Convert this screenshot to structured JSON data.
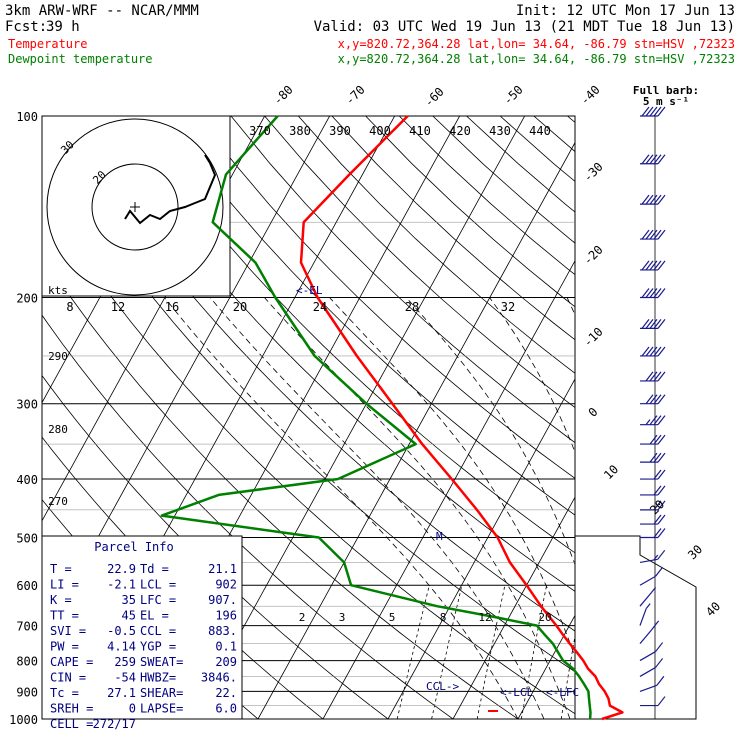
{
  "header": {
    "model": "3km ARW-WRF -- NCAR/MMM",
    "init": "Init: 12 UTC Mon 17 Jun 13",
    "fcst_label": "Fcst:",
    "fcst_value": "39 h",
    "valid": "Valid: 03 UTC Wed 19 Jun 13 (21 MDT Tue 18 Jun 13)",
    "temp_name": "Temperature",
    "dew_name": "Dewpoint temperature",
    "loc_info": "x,y=820.72,364.28   lat,lon= 34.64, -86.79   stn=HSV ,72323",
    "full_barb_label": "Full barb:",
    "full_barb_value": "5 m s⁻¹",
    "kts": "kts"
  },
  "colors": {
    "temperature": "#ff0000",
    "dewpoint": "#008000",
    "barbs": "#1a1a8c",
    "labels": "#000080"
  },
  "parcel": {
    "title": "Parcel Info",
    "rows": [
      [
        "T  =",
        "22.9",
        "Td =",
        "21.1"
      ],
      [
        "LI =",
        "-2.1",
        "LCL =",
        "902"
      ],
      [
        "K  =",
        "35",
        "LFC =",
        "907."
      ],
      [
        "TT =",
        "45",
        "EL  =",
        "196"
      ],
      [
        "SVI =",
        "-0.5",
        "CCL =",
        "883."
      ],
      [
        "PW =",
        "4.14",
        "YGP =",
        "0.1"
      ],
      [
        "CAPE =",
        "259",
        "SWEAT=",
        "209"
      ],
      [
        "CIN =",
        "-54",
        "HWBZ=",
        "3846."
      ],
      [
        "Tc =",
        "27.1",
        "SHEAR=",
        "22."
      ],
      [
        "SREH =",
        "0",
        "LAPSE=",
        "6.0"
      ],
      [
        "CELL =",
        "272/17",
        "",
        ""
      ]
    ]
  },
  "chart_data": {
    "type": "line",
    "diagram": "skew-t log-p",
    "pressure_levels": [
      100,
      200,
      300,
      400,
      500,
      600,
      700,
      800,
      900,
      1000
    ],
    "pressure_labels": [
      "100",
      "200",
      "300",
      "400",
      "500",
      "600",
      "700",
      "800",
      "900",
      "1000"
    ],
    "isotherms": [
      -80,
      -70,
      -60,
      -50,
      -40,
      -30,
      -20,
      -10,
      0,
      10,
      20,
      30,
      40
    ],
    "isotherm_labels": [
      "-80",
      "-70",
      "-60",
      "-50",
      "-40",
      "-30",
      "-20",
      "-10",
      "0",
      "10",
      "20",
      "30",
      "40"
    ],
    "theta_labels": [
      "290",
      "280",
      "270"
    ],
    "theta_e_labels": [
      "370",
      "380",
      "390",
      "400",
      "410",
      "420",
      "430",
      "440"
    ],
    "mixing_ratio_labels": [
      "2",
      "3",
      "5",
      "8",
      "12",
      "20"
    ],
    "hodograph_speed_labels": [
      "8",
      "12",
      "16",
      "20",
      "24",
      "28",
      "32"
    ],
    "hodograph_ring_labels": [
      "30",
      "20"
    ],
    "annotations": {
      "el": "<-EL",
      "lcl": "<-LCL",
      "lfc": "<-LFC",
      "ccl": "CCL->",
      "m": "M"
    },
    "series": [
      {
        "name": "Temperature",
        "points": [
          [
            1000,
            22.9
          ],
          [
            975,
            25.5
          ],
          [
            950,
            23.0
          ],
          [
            925,
            22.2
          ],
          [
            900,
            21.0
          ],
          [
            875,
            19.5
          ],
          [
            850,
            18.3
          ],
          [
            825,
            16.5
          ],
          [
            800,
            15.1
          ],
          [
            775,
            13.4
          ],
          [
            750,
            11.6
          ],
          [
            725,
            9.8
          ],
          [
            700,
            8.0
          ],
          [
            650,
            4.0
          ],
          [
            600,
            0.0
          ],
          [
            550,
            -4.5
          ],
          [
            500,
            -8.5
          ],
          [
            450,
            -14.0
          ],
          [
            400,
            -20.5
          ],
          [
            350,
            -28.0
          ],
          [
            300,
            -36.0
          ],
          [
            250,
            -45.5
          ],
          [
            200,
            -56.5
          ],
          [
            175,
            -62.0
          ],
          [
            150,
            -65.0
          ],
          [
            125,
            -62.0
          ],
          [
            100,
            -58.0
          ]
        ]
      },
      {
        "name": "Dewpoint temperature",
        "points": [
          [
            1000,
            21.1
          ],
          [
            975,
            20.6
          ],
          [
            950,
            19.9
          ],
          [
            925,
            19.2
          ],
          [
            900,
            18.5
          ],
          [
            875,
            17.2
          ],
          [
            850,
            15.8
          ],
          [
            825,
            14.2
          ],
          [
            800,
            12.0
          ],
          [
            775,
            10.5
          ],
          [
            750,
            9.0
          ],
          [
            725,
            7.0
          ],
          [
            700,
            5.0
          ],
          [
            675,
            -3.0
          ],
          [
            650,
            -12.0
          ],
          [
            600,
            -27.0
          ],
          [
            550,
            -30.0
          ],
          [
            500,
            -36.0
          ],
          [
            460,
            -62.0
          ],
          [
            425,
            -55.0
          ],
          [
            400,
            -38.0
          ],
          [
            350,
            -29.0
          ],
          [
            300,
            -40.0
          ],
          [
            250,
            -52.0
          ],
          [
            200,
            -63.0
          ],
          [
            175,
            -69.0
          ],
          [
            150,
            -79.0
          ],
          [
            125,
            -81.0
          ],
          [
            100,
            -78.0
          ]
        ]
      }
    ],
    "wind_barbs": [
      {
        "p": 100,
        "speed": 25,
        "dir": 270
      },
      {
        "p": 120,
        "speed": 25,
        "dir": 270
      },
      {
        "p": 140,
        "speed": 25,
        "dir": 270
      },
      {
        "p": 160,
        "speed": 25,
        "dir": 270
      },
      {
        "p": 180,
        "speed": 25,
        "dir": 270
      },
      {
        "p": 200,
        "speed": 25,
        "dir": 270
      },
      {
        "p": 225,
        "speed": 25,
        "dir": 270
      },
      {
        "p": 250,
        "speed": 25,
        "dir": 270
      },
      {
        "p": 275,
        "speed": 22,
        "dir": 270
      },
      {
        "p": 300,
        "speed": 20,
        "dir": 270
      },
      {
        "p": 325,
        "speed": 18,
        "dir": 270
      },
      {
        "p": 350,
        "speed": 15,
        "dir": 270
      },
      {
        "p": 375,
        "speed": 15,
        "dir": 270
      },
      {
        "p": 400,
        "speed": 12,
        "dir": 270
      },
      {
        "p": 425,
        "speed": 12,
        "dir": 270
      },
      {
        "p": 450,
        "speed": 10,
        "dir": 270
      },
      {
        "p": 475,
        "speed": 10,
        "dir": 270
      },
      {
        "p": 500,
        "speed": 10,
        "dir": 270
      },
      {
        "p": 550,
        "speed": 8,
        "dir": 280
      },
      {
        "p": 600,
        "speed": 5,
        "dir": 300
      },
      {
        "p": 650,
        "speed": 3,
        "dir": 320
      },
      {
        "p": 700,
        "speed": 3,
        "dir": 340
      },
      {
        "p": 750,
        "speed": 5,
        "dir": 320
      },
      {
        "p": 800,
        "speed": 5,
        "dir": 300
      },
      {
        "p": 850,
        "speed": 7,
        "dir": 300
      },
      {
        "p": 900,
        "speed": 7,
        "dir": 290
      },
      {
        "p": 950,
        "speed": 5,
        "dir": 270
      }
    ],
    "hodograph": [
      [
        -2,
        -3
      ],
      [
        -1,
        -1
      ],
      [
        1,
        -4
      ],
      [
        3,
        -2
      ],
      [
        5,
        -3
      ],
      [
        7,
        -1
      ],
      [
        10,
        0
      ],
      [
        12,
        1
      ],
      [
        14,
        2
      ],
      [
        15,
        5
      ],
      [
        16,
        8
      ],
      [
        15,
        11
      ],
      [
        14,
        13
      ]
    ]
  }
}
